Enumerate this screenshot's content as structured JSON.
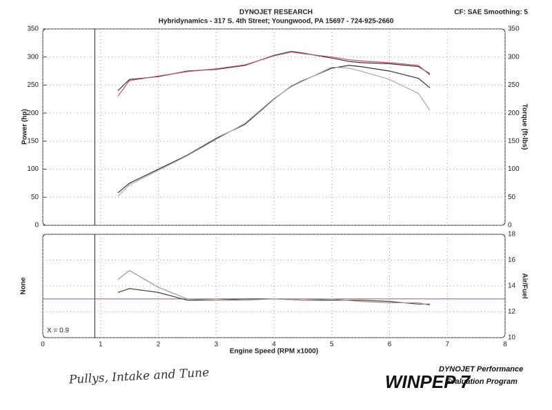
{
  "header": {
    "title": "DYNOJET RESEARCH",
    "subtitle": "Hybridynamics - 317 S. 4th Street; Youngwood, PA 15697 - 724-925-2660",
    "settings": "CF: SAE  Smoothing: 5"
  },
  "note": "Pullys, Intake and Tune",
  "logo": {
    "name": "WINPEP 7",
    "line1": "DYNOJET Performance",
    "line2": "Evaluation Program"
  },
  "cursor": {
    "label": "X = 0.9",
    "x": 0.9
  },
  "chart_data": [
    {
      "type": "line",
      "ylabel": "Power (hp)",
      "y2label": "Torque (ft-lbs)",
      "x": [
        1.3,
        1.5,
        2,
        2.5,
        3,
        3.5,
        4,
        4.3,
        4.5,
        5,
        5.3,
        5.5,
        6,
        6.5,
        6.7
      ],
      "xlim": [
        0,
        8
      ],
      "ylim": [
        0,
        350
      ],
      "yticks": [
        0,
        50,
        100,
        150,
        200,
        250,
        300,
        350
      ],
      "y2lim": [
        0,
        350
      ],
      "y2ticks": [
        0,
        50,
        100,
        150,
        200,
        250,
        300,
        350
      ],
      "grid": true,
      "series": [
        {
          "color": "#333333",
          "values": [
            58,
            75,
            100,
            125,
            155,
            180,
            225,
            248,
            258,
            280,
            285,
            283,
            275,
            262,
            245
          ]
        },
        {
          "color": "#333333",
          "axis": "y2",
          "values": [
            240,
            260,
            265,
            275,
            278,
            285,
            303,
            310,
            307,
            298,
            292,
            290,
            288,
            283,
            270
          ]
        },
        {
          "color": "#c0506a",
          "axis": "y2",
          "values": [
            230,
            258,
            266,
            274,
            279,
            286,
            302,
            309,
            306,
            300,
            295,
            293,
            290,
            285,
            268
          ]
        },
        {
          "color": "#aaaaaa",
          "values": [
            52,
            72,
            98,
            124,
            153,
            182,
            226,
            247,
            257,
            282,
            280,
            275,
            260,
            235,
            205
          ]
        }
      ]
    },
    {
      "type": "line",
      "xlabel": "Engine Speed (RPM x1000)",
      "ylabel": "None",
      "y2label": "Air/Fuel",
      "x": [
        1.3,
        1.5,
        2,
        2.5,
        3,
        3.5,
        4,
        4.5,
        5,
        5.5,
        6,
        6.5,
        6.7
      ],
      "xlim": [
        0,
        8
      ],
      "xticks": [
        0,
        1,
        2,
        3,
        4,
        5,
        6,
        7,
        8
      ],
      "y2lim": [
        10,
        18
      ],
      "y2ticks": [
        10,
        12,
        14,
        16,
        18
      ],
      "grid": true,
      "reference": 13,
      "series": [
        {
          "color": "#444444",
          "axis": "y2",
          "values": [
            13.5,
            13.8,
            13.5,
            12.9,
            12.9,
            13.0,
            13.0,
            12.9,
            12.9,
            12.9,
            12.8,
            12.6,
            12.6
          ]
        },
        {
          "color": "#999999",
          "axis": "y2",
          "values": [
            14.5,
            15.2,
            13.9,
            13.0,
            12.9,
            12.9,
            13.0,
            12.9,
            13.0,
            12.8,
            12.7,
            12.7,
            12.5
          ]
        }
      ]
    }
  ]
}
